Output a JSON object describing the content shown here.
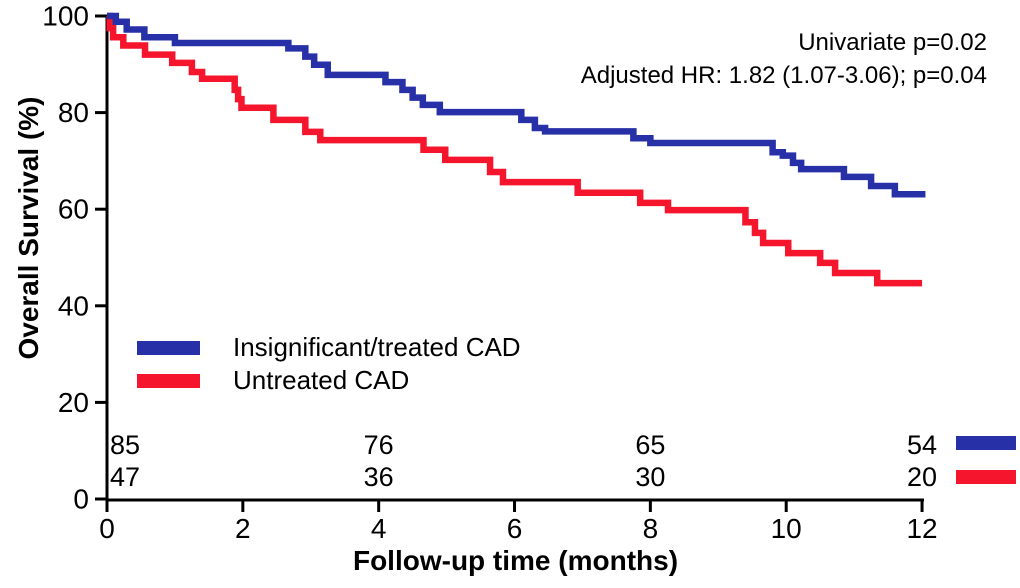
{
  "annotation": {
    "line1": "Univariate p=0.02",
    "line2": "Adjusted HR: 1.82 (1.07-3.06); p=0.04"
  },
  "chart_data": {
    "type": "line",
    "subtype": "kaplan-meier-step-curves",
    "title": "",
    "xlabel": "Follow-up time (months)",
    "ylabel": "Overall Survival (%)",
    "xlim": [
      0,
      12
    ],
    "ylim": [
      0,
      100
    ],
    "x_ticks": [
      0,
      2,
      4,
      6,
      8,
      10,
      12
    ],
    "y_ticks": [
      0,
      20,
      40,
      60,
      80,
      100
    ],
    "grid": false,
    "legend_position": "inside-left-middle",
    "annotations": [
      "Univariate p=0.02",
      "Adjusted HR: 1.82 (1.07-3.06); p=0.04"
    ],
    "series": [
      {
        "name": "Insignificant/treated CAD",
        "color": "#2830A8",
        "end_time": 12.05,
        "steps": [
          [
            0,
            100
          ],
          [
            0.13,
            98.8
          ],
          [
            0.29,
            97.2
          ],
          [
            0.55,
            95.6
          ],
          [
            1.0,
            94.4
          ],
          [
            2.67,
            93.3
          ],
          [
            2.92,
            91.6
          ],
          [
            3.05,
            89.9
          ],
          [
            3.25,
            87.8
          ],
          [
            4.1,
            86.3
          ],
          [
            4.35,
            84.7
          ],
          [
            4.5,
            83.1
          ],
          [
            4.65,
            81.6
          ],
          [
            4.9,
            80.1
          ],
          [
            6.1,
            78.5
          ],
          [
            6.3,
            76.8
          ],
          [
            6.45,
            76.1
          ],
          [
            7.75,
            74.7
          ],
          [
            8.0,
            73.7
          ],
          [
            9.8,
            71.8
          ],
          [
            9.95,
            71.1
          ],
          [
            10.1,
            69.6
          ],
          [
            10.22,
            68.3
          ],
          [
            10.85,
            66.7
          ],
          [
            11.25,
            64.8
          ],
          [
            11.6,
            63.1
          ]
        ]
      },
      {
        "name": "Untreated CAD",
        "color": "#F5152D",
        "end_time": 12.0,
        "steps": [
          [
            0,
            100
          ],
          [
            0.04,
            97.5
          ],
          [
            0.09,
            95.6
          ],
          [
            0.24,
            93.9
          ],
          [
            0.56,
            92.0
          ],
          [
            0.96,
            90.3
          ],
          [
            1.25,
            88.4
          ],
          [
            1.4,
            87.0
          ],
          [
            1.88,
            84.7
          ],
          [
            1.93,
            82.8
          ],
          [
            1.98,
            81.0
          ],
          [
            2.45,
            78.5
          ],
          [
            2.92,
            76.0
          ],
          [
            3.14,
            74.3
          ],
          [
            4.66,
            72.3
          ],
          [
            4.98,
            70.2
          ],
          [
            5.64,
            67.7
          ],
          [
            5.83,
            65.6
          ],
          [
            6.93,
            63.4
          ],
          [
            7.85,
            61.3
          ],
          [
            8.26,
            59.8
          ],
          [
            9.4,
            57.3
          ],
          [
            9.54,
            55.1
          ],
          [
            9.66,
            53.0
          ],
          [
            10.03,
            50.9
          ],
          [
            10.5,
            48.9
          ],
          [
            10.72,
            46.8
          ],
          [
            11.34,
            44.7
          ]
        ]
      }
    ],
    "at_risk": {
      "months": [
        0,
        4,
        8,
        12
      ],
      "rows": [
        {
          "series": "Insignificant/treated CAD",
          "color": "#2830A8",
          "counts": [
            "85",
            "76",
            "65",
            "54"
          ]
        },
        {
          "series": "Untreated CAD",
          "color": "#F5152D",
          "counts": [
            "47",
            "36",
            "30",
            "20"
          ]
        }
      ]
    }
  }
}
